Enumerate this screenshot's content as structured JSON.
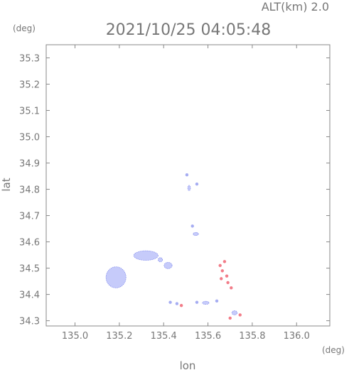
{
  "header": {
    "altitude_label": "ALT(km)  2.0",
    "timestamp": "2021/10/25 04:05:48"
  },
  "units": {
    "y": "(deg)",
    "x": "(deg)"
  },
  "chart_data": {
    "type": "scatter",
    "title": "2021/10/25 04:05:48",
    "subtitle": "ALT(km)  2.0",
    "xlabel": "lon",
    "ylabel": "lat",
    "xlim": [
      134.87,
      136.15
    ],
    "ylim": [
      34.28,
      35.35
    ],
    "x_ticks": [
      "135.0",
      "135.2",
      "135.4",
      "135.6",
      "135.8",
      "136.0"
    ],
    "y_ticks": [
      "34.3",
      "34.4",
      "34.5",
      "34.6",
      "34.7",
      "34.8",
      "34.9",
      "35.0",
      "35.1",
      "35.2",
      "35.3"
    ],
    "grid": false,
    "colors": {
      "approaching": "#8891ee",
      "approaching_light": "#c6cbfa",
      "receding": "#ee5060",
      "receding_light": "#f5a8b2",
      "frame": "#888888"
    },
    "echo_regions": [
      {
        "kind": "approaching",
        "lon": 135.185,
        "lat": 34.465,
        "rx": 0.045,
        "ry": 0.04
      },
      {
        "kind": "approaching",
        "lon": 135.32,
        "lat": 34.548,
        "rx": 0.055,
        "ry": 0.018
      },
      {
        "kind": "approaching",
        "lon": 135.42,
        "lat": 34.51,
        "rx": 0.018,
        "ry": 0.012
      },
      {
        "kind": "approaching",
        "lon": 135.385,
        "lat": 34.532,
        "rx": 0.01,
        "ry": 0.008
      },
      {
        "kind": "approaching",
        "lon": 135.545,
        "lat": 34.63,
        "rx": 0.012,
        "ry": 0.006
      },
      {
        "kind": "approaching",
        "lon": 135.515,
        "lat": 34.805,
        "rx": 0.006,
        "ry": 0.01
      },
      {
        "kind": "approaching",
        "lon": 135.72,
        "lat": 34.33,
        "rx": 0.012,
        "ry": 0.008
      },
      {
        "kind": "approaching",
        "lon": 135.59,
        "lat": 34.368,
        "rx": 0.015,
        "ry": 0.006
      }
    ],
    "echo_points": [
      {
        "kind": "approaching",
        "lon": 135.505,
        "lat": 34.855
      },
      {
        "kind": "approaching",
        "lon": 135.55,
        "lat": 34.82
      },
      {
        "kind": "approaching",
        "lon": 135.53,
        "lat": 34.66
      },
      {
        "kind": "approaching",
        "lon": 135.43,
        "lat": 34.37
      },
      {
        "kind": "approaching",
        "lon": 135.46,
        "lat": 34.365
      },
      {
        "kind": "approaching",
        "lon": 135.55,
        "lat": 34.37
      },
      {
        "kind": "approaching",
        "lon": 135.64,
        "lat": 34.375
      },
      {
        "kind": "receding",
        "lon": 135.655,
        "lat": 34.51
      },
      {
        "kind": "receding",
        "lon": 135.675,
        "lat": 34.525
      },
      {
        "kind": "receding",
        "lon": 135.665,
        "lat": 34.49
      },
      {
        "kind": "receding",
        "lon": 135.685,
        "lat": 34.47
      },
      {
        "kind": "receding",
        "lon": 135.69,
        "lat": 34.445
      },
      {
        "kind": "receding",
        "lon": 135.705,
        "lat": 34.425
      },
      {
        "kind": "receding",
        "lon": 135.7,
        "lat": 34.31
      },
      {
        "kind": "receding",
        "lon": 135.745,
        "lat": 34.322
      },
      {
        "kind": "receding",
        "lon": 135.48,
        "lat": 34.358
      },
      {
        "kind": "receding",
        "lon": 135.66,
        "lat": 34.46
      }
    ]
  }
}
